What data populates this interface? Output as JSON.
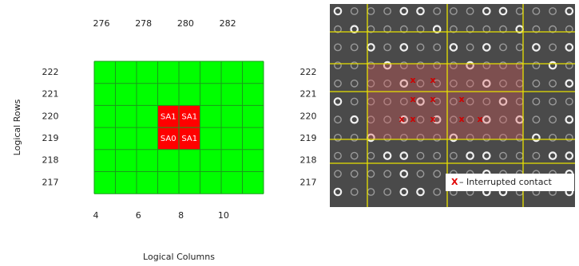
{
  "fail_map": {
    "top_columns": [
      276,
      278,
      280,
      282
    ],
    "rows": [
      222,
      221,
      220,
      219,
      218,
      217
    ],
    "bottom_columns": [
      4,
      6,
      8,
      10
    ],
    "y_axis_title": "Logical Rows",
    "x_axis_title": "Logical Columns",
    "fail_labels": [
      [
        "SA1",
        "SA1"
      ],
      [
        "SA0",
        "SA1"
      ]
    ]
  },
  "micrograph": {
    "rows": [
      222,
      221,
      220,
      219,
      218,
      217
    ],
    "legend": {
      "marker": "X",
      "text": "– Interrupted contact"
    }
  }
}
